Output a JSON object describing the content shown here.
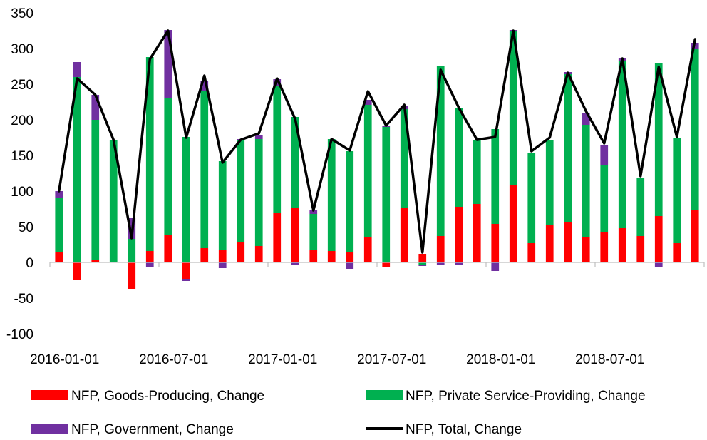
{
  "chart_data": {
    "type": "bar",
    "stacked": true,
    "x_tick_labels": [
      "2016-01-01",
      "2016-07-01",
      "2017-01-01",
      "2017-07-01",
      "2018-01-01",
      "2018-07-01"
    ],
    "ylim": [
      -100,
      350
    ],
    "y_ticks": [
      -100,
      -50,
      0,
      50,
      100,
      150,
      200,
      250,
      300,
      350
    ],
    "legend_position": "bottom",
    "grid": false,
    "series": [
      {
        "name": "NFP, Goods-Producing, Change",
        "kind": "bar",
        "color": "#FF0000",
        "values": [
          14,
          -25,
          3,
          0,
          -37,
          16,
          39,
          -23,
          20,
          18,
          28,
          23,
          70,
          76,
          18,
          16,
          14,
          35,
          -7,
          76,
          12,
          37,
          78,
          82,
          54,
          108,
          27,
          52,
          56,
          36,
          42,
          48,
          37,
          65,
          27,
          73
        ]
      },
      {
        "name": "NFP, Private Service-Providing, Change",
        "kind": "bar",
        "color": "#00B050",
        "values": [
          76,
          260,
          197,
          172,
          33,
          272,
          192,
          176,
          220,
          124,
          143,
          150,
          177,
          128,
          50,
          157,
          142,
          186,
          190,
          139,
          -3,
          239,
          139,
          90,
          133,
          216,
          127,
          120,
          208,
          157,
          95,
          234,
          82,
          215,
          148,
          226
        ]
      },
      {
        "name": "NFP, Government, Change",
        "kind": "bar",
        "color": "#7030A0",
        "values": [
          10,
          21,
          35,
          0,
          29,
          -6,
          95,
          -3,
          15,
          -8,
          2,
          6,
          10,
          -4,
          5,
          0,
          -9,
          7,
          1,
          5,
          -2,
          -4,
          -3,
          0,
          -12,
          2,
          0,
          0,
          3,
          16,
          28,
          5,
          0,
          -7,
          0,
          9
        ]
      },
      {
        "name": "NFP, Total, Change",
        "kind": "line",
        "color": "#000000",
        "values": [
          100,
          258,
          235,
          172,
          34,
          285,
          325,
          175,
          262,
          140,
          172,
          181,
          258,
          201,
          73,
          173,
          157,
          240,
          192,
          221,
          14,
          270,
          217,
          172,
          176,
          325,
          156,
          175,
          266,
          212,
          167,
          286,
          121,
          274,
          176,
          313
        ]
      }
    ]
  }
}
